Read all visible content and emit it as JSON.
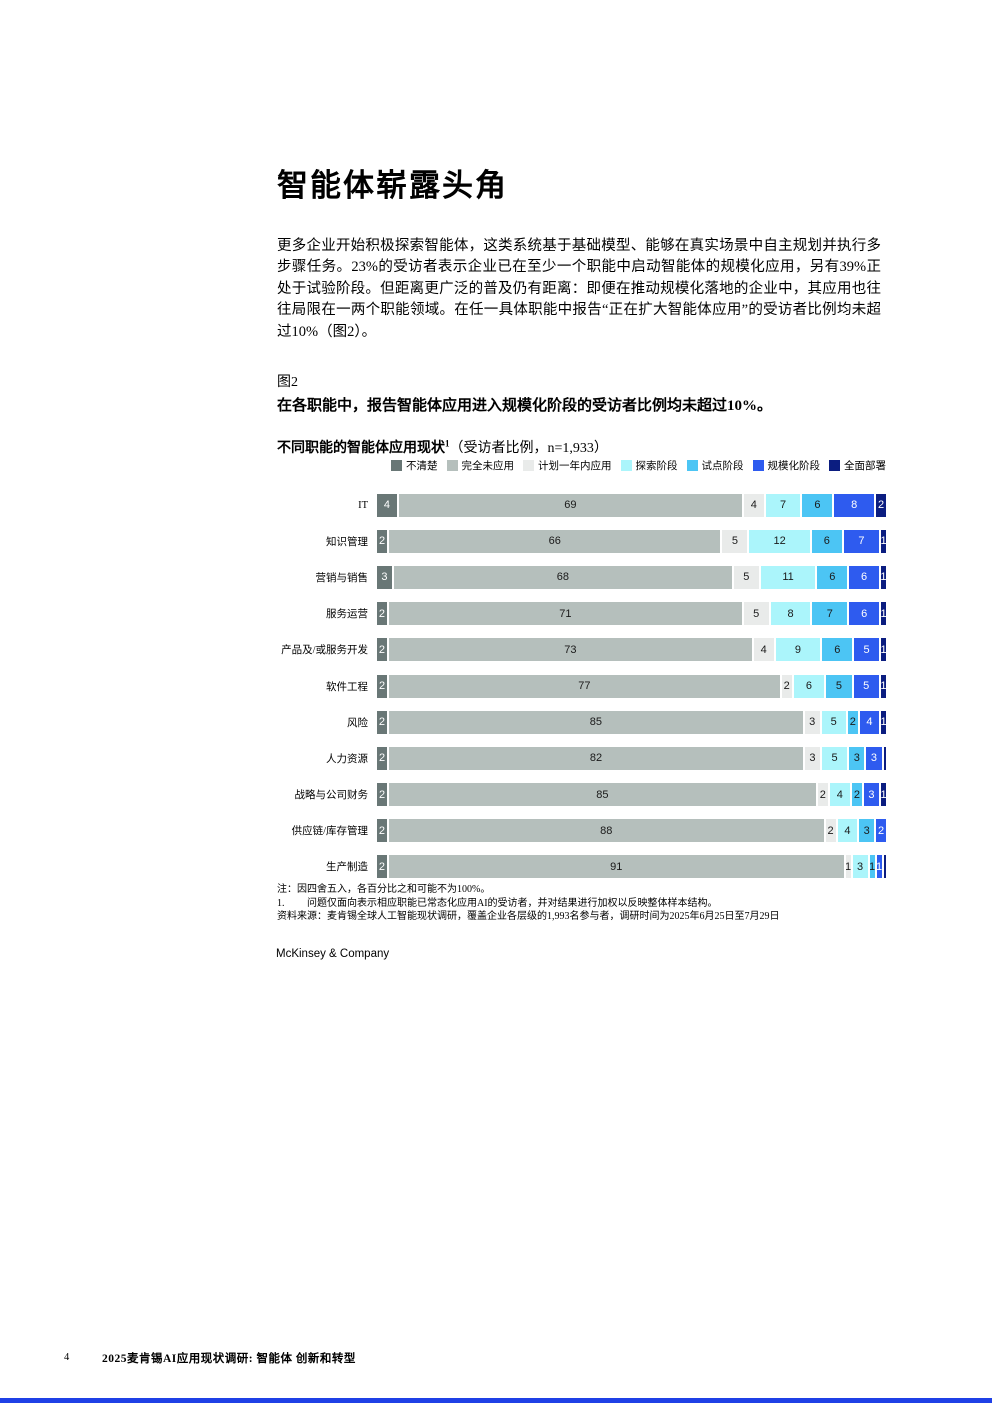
{
  "page": {
    "title": "智能体崭露头角",
    "paragraph": "更多企业开始积极探索智能体，这类系统基于基础模型、能够在真实场景中自主规划并执行多步骤任务。23%的受访者表示企业已在至少一个职能中启动智能体的规模化应用，另有39%正处于试验阶段。但距离更广泛的普及仍有距离：即便在推动规模化落地的企业中，其应用也往往局限在一两个职能领域。在任一具体职能中报告“正在扩大智能体应用”的受访者比例均未超过10%（图2）。",
    "accent_color": "#1f40e6"
  },
  "figure": {
    "fig_label": "图2",
    "headline": "在各职能中，报告智能体应用进入规模化阶段的受访者比例均未超过10%。"
  },
  "chart_data": {
    "type": "bar",
    "stacked": true,
    "orientation": "horizontal",
    "title_bold": "不同职能的智能体应用现状",
    "title_superscript": "1",
    "title_rest": "（受访者比例，n=1,933）",
    "value_unit": "percent",
    "xlim": [
      0,
      100
    ],
    "grid": false,
    "legend_position": "top-right",
    "series_labels": [
      "不清楚",
      "完全未应用",
      "计划一年内应用",
      "探索阶段",
      "试点阶段",
      "规模化阶段",
      "全面部署"
    ],
    "series_colors": [
      "#697776",
      "#b5bfbc",
      "#e9ebea",
      "#abf5fb",
      "#4cc5f4",
      "#2e5bef",
      "#0b1d80"
    ],
    "series_text_colors": [
      "#ffffff",
      "#1a1a1a",
      "#1a1a1a",
      "#1a1a1a",
      "#1a1a1a",
      "#ffffff",
      "#ffffff"
    ],
    "min_label_value": 1,
    "categories": [
      "IT",
      "知识管理",
      "营销与销售",
      "服务运营",
      "产品及/或服务开发",
      "软件工程",
      "风险",
      "人力资源",
      "战略与公司财务",
      "供应链/库存管理",
      "生产制造"
    ],
    "values": [
      [
        4,
        69,
        4,
        7,
        6,
        8,
        2
      ],
      [
        2,
        66,
        5,
        12,
        6,
        7,
        1
      ],
      [
        3,
        68,
        5,
        11,
        6,
        6,
        1
      ],
      [
        2,
        71,
        5,
        8,
        7,
        6,
        1
      ],
      [
        2,
        73,
        4,
        9,
        6,
        5,
        1
      ],
      [
        2,
        77,
        2,
        6,
        5,
        5,
        1
      ],
      [
        2,
        85,
        3,
        5,
        2,
        4,
        1
      ],
      [
        2,
        82,
        3,
        5,
        3,
        3,
        0.5
      ],
      [
        2,
        85,
        2,
        4,
        2,
        3,
        1
      ],
      [
        2,
        88,
        2,
        4,
        3,
        2,
        0
      ],
      [
        2,
        91,
        1,
        3,
        1,
        1,
        0.5
      ]
    ]
  },
  "notes": {
    "rounding_note": "注：因四舍五入，各百分比之和可能不为100%。",
    "footnote_number": "1.",
    "footnote_text": "问题仅面向表示相应职能已常态化应用AI的受访者，并对结果进行加权以反映整体样本结构。",
    "source_line": "资料来源：麦肯锡全球人工智能现状调研，覆盖企业各层级的1,993名参与者，调研时间为2025年6月25日至7月29日",
    "brand": "McKinsey & Company"
  },
  "footer": {
    "page_number": "4",
    "doc_title": "2025麦肯锡AI应用现状调研: 智能体 创新和转型"
  }
}
